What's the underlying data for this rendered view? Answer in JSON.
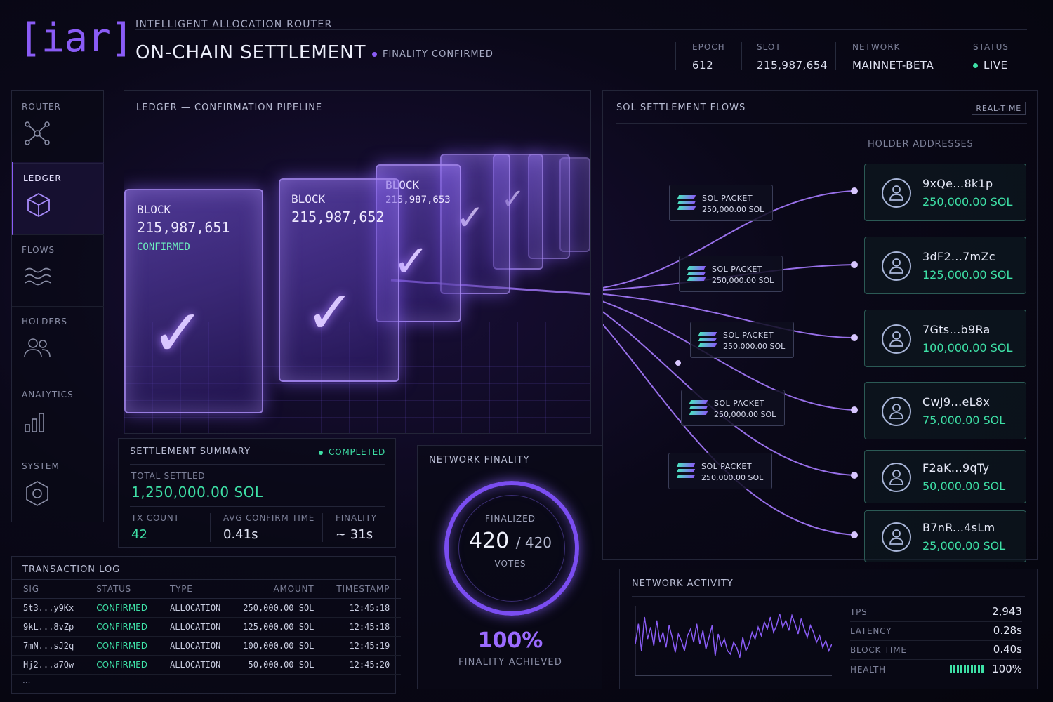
{
  "header": {
    "logo": "[iar]",
    "subtitle": "INTELLIGENT ALLOCATION ROUTER",
    "title": "ON-CHAIN SETTLEMENT",
    "finality_badge": "FINALITY CONFIRMED",
    "stats": [
      {
        "label": "EPOCH",
        "value": "612"
      },
      {
        "label": "SLOT",
        "value": "215,987,654"
      },
      {
        "label": "NETWORK",
        "value": "MAINNET-BETA"
      },
      {
        "label": "STATUS",
        "value": "LIVE"
      }
    ]
  },
  "sidebar": {
    "items": [
      {
        "label": "ROUTER",
        "icon": "router-network-icon"
      },
      {
        "label": "LEDGER",
        "icon": "cube-icon",
        "active": true
      },
      {
        "label": "FLOWS",
        "icon": "waves-icon"
      },
      {
        "label": "HOLDERS",
        "icon": "users-icon"
      },
      {
        "label": "ANALYTICS",
        "icon": "bar-chart-icon"
      },
      {
        "label": "SYSTEM",
        "icon": "hexagon-icon"
      }
    ]
  },
  "ledger": {
    "title": "LEDGER — CONFIRMATION PIPELINE",
    "blocks": [
      {
        "label": "BLOCK",
        "number": "215,987,651",
        "status": "CONFIRMED"
      },
      {
        "label": "BLOCK",
        "number": "215,987,652",
        "status": ""
      },
      {
        "label": "BLOCK",
        "number": "215,987,653",
        "status": ""
      }
    ]
  },
  "flows": {
    "title": "SOL SETTLEMENT FLOWS",
    "badge": "REAL-TIME",
    "holders_title": "HOLDER ADDRESSES",
    "packets": [
      {
        "label": "SOL PACKET",
        "amount": "250,000.00 SOL"
      },
      {
        "label": "SOL PACKET",
        "amount": "250,000.00 SOL"
      },
      {
        "label": "SOL PACKET",
        "amount": "250,000.00 SOL"
      },
      {
        "label": "SOL PACKET",
        "amount": "250,000.00 SOL"
      },
      {
        "label": "SOL PACKET",
        "amount": "250,000.00 SOL"
      }
    ],
    "holders": [
      {
        "address": "9xQe...8k1p",
        "amount": "250,000.00 SOL"
      },
      {
        "address": "3dF2...7mZc",
        "amount": "125,000.00 SOL"
      },
      {
        "address": "7Gts...b9Ra",
        "amount": "100,000.00 SOL"
      },
      {
        "address": "CwJ9...eL8x",
        "amount": "75,000.00 SOL"
      },
      {
        "address": "F2aK...9qTy",
        "amount": "50,000.00 SOL"
      },
      {
        "address": "B7nR...4sLm",
        "amount": "25,000.00 SOL"
      }
    ]
  },
  "summary": {
    "title": "SETTLEMENT SUMMARY",
    "status": "COMPLETED",
    "total_label": "TOTAL SETTLED",
    "total_value": "1,250,000.00 SOL",
    "tx_label": "TX COUNT",
    "tx_value": "42",
    "avg_label": "AVG CONFIRM TIME",
    "avg_value": "0.41s",
    "finality_label": "FINALITY",
    "finality_value": "~ 31s"
  },
  "txlog": {
    "title": "TRANSACTION LOG",
    "columns": [
      "SIG",
      "STATUS",
      "TYPE",
      "AMOUNT",
      "TIMESTAMP"
    ],
    "rows": [
      [
        "5t3...y9Kx",
        "CONFIRMED",
        "ALLOCATION",
        "250,000.00 SOL",
        "12:45:18"
      ],
      [
        "9kL...8vZp",
        "CONFIRMED",
        "ALLOCATION",
        "125,000.00 SOL",
        "12:45:18"
      ],
      [
        "7mN...sJ2q",
        "CONFIRMED",
        "ALLOCATION",
        "100,000.00 SOL",
        "12:45:19"
      ],
      [
        "Hj2...a7Qw",
        "CONFIRMED",
        "ALLOCATION",
        "50,000.00 SOL",
        "12:45:20"
      ]
    ],
    "more": "..."
  },
  "finality": {
    "title": "NETWORK FINALITY",
    "finalized_label": "FINALIZED",
    "votes_value": "420",
    "votes_total": "/ 420",
    "votes_unit": "VOTES",
    "percent": "100%",
    "percent_label": "FINALITY ACHIEVED",
    "fraction": 1.0
  },
  "activity": {
    "title": "NETWORK ACTIVITY",
    "metrics": [
      {
        "label": "TPS",
        "value": "2,943"
      },
      {
        "label": "LATENCY",
        "value": "0.28s"
      },
      {
        "label": "BLOCK TIME",
        "value": "0.40s"
      },
      {
        "label": "HEALTH",
        "value": "100%"
      }
    ],
    "spark": [
      38,
      62,
      30,
      70,
      44,
      58,
      36,
      66,
      40,
      52,
      34,
      60,
      46,
      28,
      50,
      42,
      30,
      48,
      56,
      40,
      62,
      38,
      54,
      32,
      46,
      60,
      24,
      50,
      36,
      44,
      30,
      26,
      40,
      34,
      22,
      46,
      30,
      38,
      52,
      44,
      58,
      48,
      64,
      56,
      70,
      52,
      60,
      74,
      58,
      66,
      54,
      72,
      62,
      50,
      68,
      56,
      46,
      60,
      52,
      40,
      48,
      34,
      42,
      30,
      38
    ]
  },
  "colors": {
    "accent": "#8a5cf6",
    "success": "#3ee0a6",
    "background": "#07060f"
  }
}
